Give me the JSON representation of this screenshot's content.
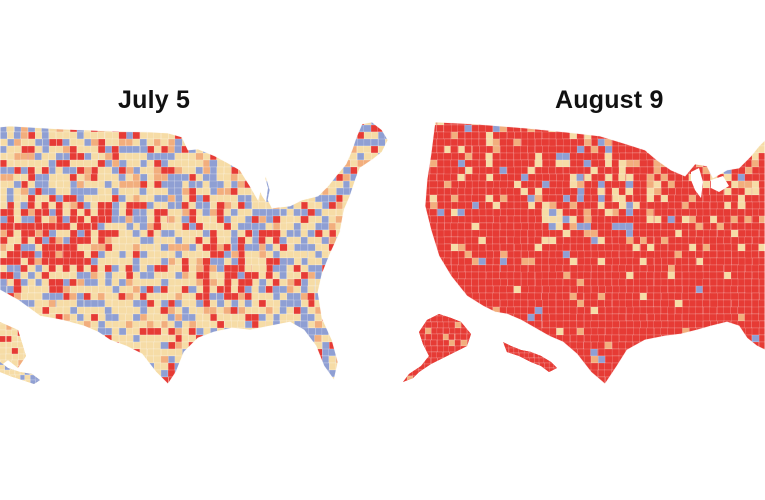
{
  "maps": [
    {
      "title": "July 5",
      "dominant_color": "#f6dca6",
      "palette": [
        "#e63b35",
        "#f6dca6",
        "#8f9fd3",
        "#f2ae7d"
      ]
    },
    {
      "title": "August 9",
      "dominant_color": "#e63b35",
      "palette": [
        "#e63b35",
        "#f6dca6",
        "#8f9fd3",
        "#f2ae7d"
      ]
    }
  ],
  "colors": {
    "red": "#e63b35",
    "tan": "#f6dca6",
    "blue": "#8f9fd3",
    "orange": "#f2ae7d",
    "background": "#ffffff"
  }
}
